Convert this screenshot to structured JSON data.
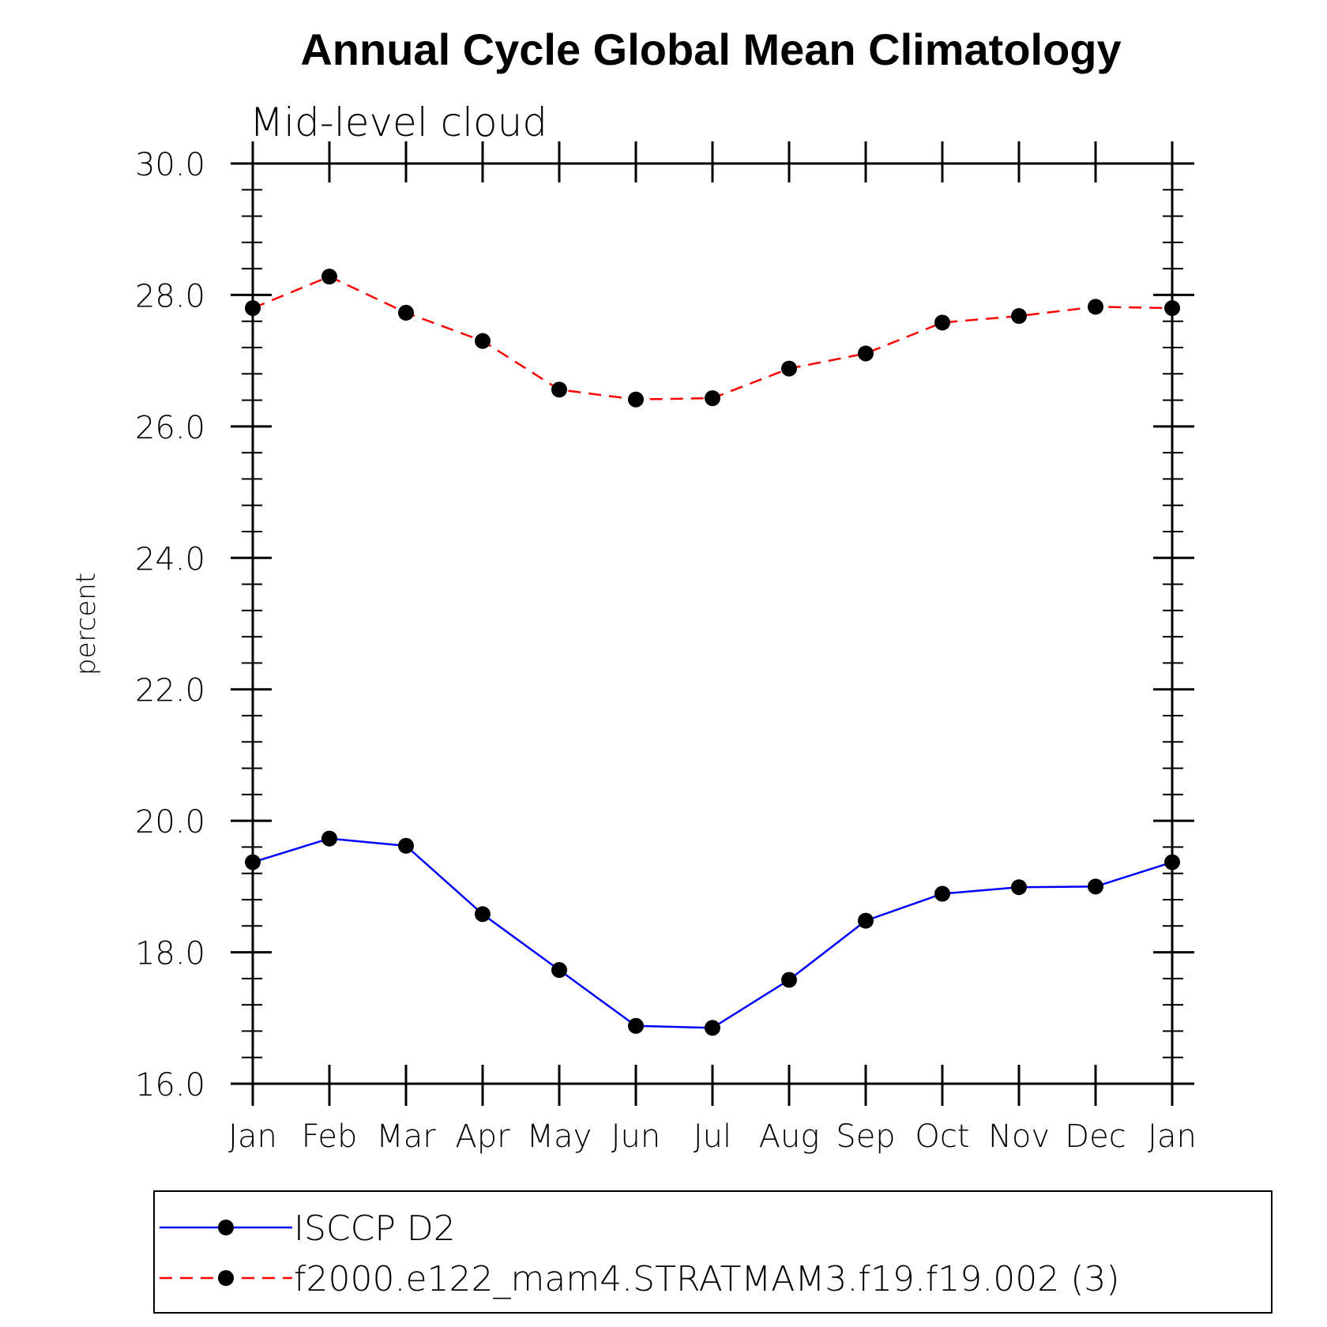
{
  "chart_data": {
    "type": "line",
    "title": "Annual Cycle Global Mean Climatology",
    "subtitle": "Mid-level cloud",
    "xlabel": "",
    "ylabel": "percent",
    "categories": [
      "Jan",
      "Feb",
      "Mar",
      "Apr",
      "May",
      "Jun",
      "Jul",
      "Aug",
      "Sep",
      "Oct",
      "Nov",
      "Dec",
      "Jan"
    ],
    "ylim": [
      16.0,
      30.0
    ],
    "yticks": [
      "16.0",
      "18.0",
      "20.0",
      "22.0",
      "24.0",
      "26.0",
      "28.0",
      "30.0"
    ],
    "grid": false,
    "legend_position": "bottom",
    "series": [
      {
        "name": "ISCCP D2",
        "color": "#0000ff",
        "dash": "solid",
        "marker": "filled-circle",
        "values": [
          19.37,
          19.73,
          19.62,
          18.58,
          17.73,
          16.88,
          16.85,
          17.58,
          18.48,
          18.89,
          18.99,
          19.0,
          19.37
        ]
      },
      {
        "name": "f2000.e122_mam4.STRATMAM3.f19.f19.002 (3)",
        "color": "#ff0000",
        "dash": "dashed",
        "marker": "filled-circle",
        "values": [
          27.8,
          28.28,
          27.73,
          27.3,
          26.56,
          26.41,
          26.43,
          26.88,
          27.11,
          27.58,
          27.68,
          27.82,
          27.8
        ]
      }
    ]
  }
}
